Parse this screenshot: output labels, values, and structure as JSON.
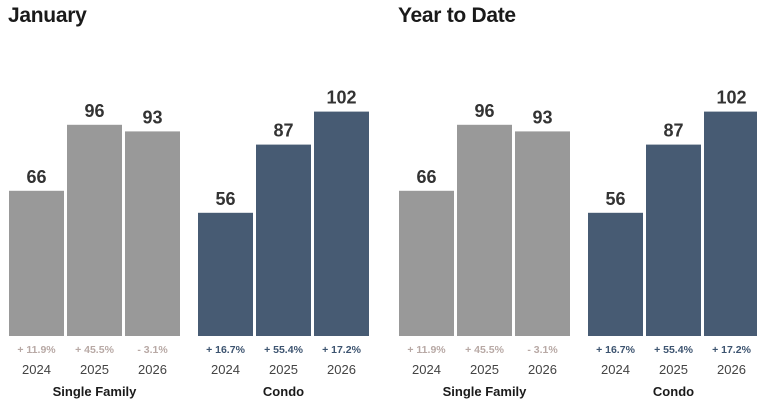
{
  "chart_data": [
    {
      "type": "bar",
      "title": "January",
      "groups": [
        {
          "name": "Single Family",
          "color": "#999999",
          "categories": [
            "2024",
            "2025",
            "2026"
          ],
          "values": [
            66,
            96,
            93
          ],
          "changes": [
            "+ 11.9%",
            "+ 45.5%",
            "- 3.1%"
          ],
          "change_color": "#b8a9a5"
        },
        {
          "name": "Condo",
          "color": "#475b73",
          "categories": [
            "2024",
            "2025",
            "2026"
          ],
          "values": [
            56,
            87,
            102
          ],
          "changes": [
            "+ 16.7%",
            "+ 55.4%",
            "+ 17.2%"
          ],
          "change_color": "#3d5470"
        }
      ]
    },
    {
      "type": "bar",
      "title": "Year to Date",
      "groups": [
        {
          "name": "Single Family",
          "color": "#999999",
          "categories": [
            "2024",
            "2025",
            "2026"
          ],
          "values": [
            66,
            96,
            93
          ],
          "changes": [
            "+ 11.9%",
            "+ 45.5%",
            "- 3.1%"
          ],
          "change_color": "#b8a9a5"
        },
        {
          "name": "Condo",
          "color": "#475b73",
          "categories": [
            "2024",
            "2025",
            "2026"
          ],
          "values": [
            56,
            87,
            102
          ],
          "changes": [
            "+ 16.7%",
            "+ 55.4%",
            "+ 17.2%"
          ],
          "change_color": "#3d5470"
        }
      ]
    }
  ]
}
